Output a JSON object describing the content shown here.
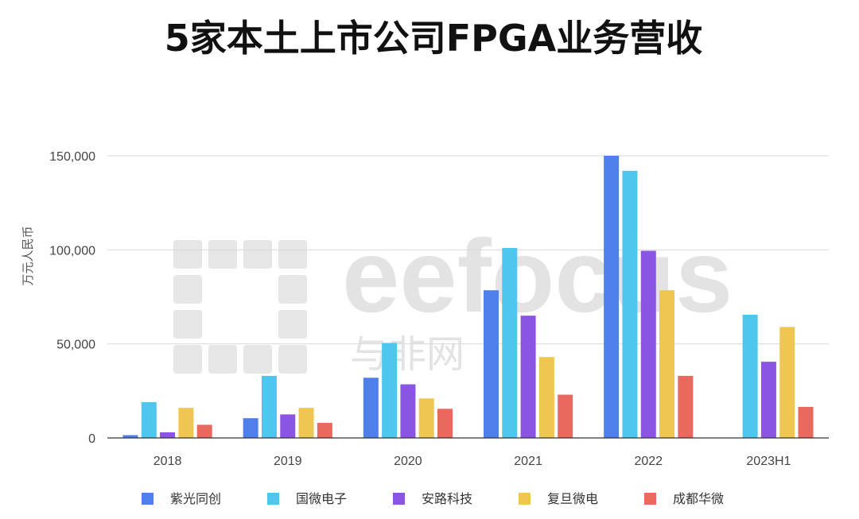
{
  "chart_data": {
    "type": "bar",
    "title": "5家本土上市公司FPGA业务营收",
    "ylabel": "万元人民币",
    "xlabel": "",
    "categories": [
      "2018",
      "2019",
      "2020",
      "2021",
      "2022",
      "2023H1"
    ],
    "ylim": [
      0,
      150000
    ],
    "yticks": [
      0,
      50000,
      100000,
      150000
    ],
    "ytick_labels": [
      "0",
      "50,000",
      "100,000",
      "150,000"
    ],
    "grid": true,
    "legend_position": "bottom",
    "series": [
      {
        "name": "紫光同创",
        "color": "#4f7fea",
        "values": [
          1500,
          10500,
          32000,
          78500,
          150000,
          null
        ]
      },
      {
        "name": "国微电子",
        "color": "#4fc6ed",
        "values": [
          19000,
          33000,
          50500,
          101000,
          142000,
          65500
        ]
      },
      {
        "name": "安路科技",
        "color": "#8a55e2",
        "values": [
          3000,
          12500,
          28500,
          65000,
          99500,
          40500
        ]
      },
      {
        "name": "复旦微电",
        "color": "#f0c652",
        "values": [
          16000,
          16000,
          21000,
          43000,
          78500,
          59000
        ]
      },
      {
        "name": "成都华微",
        "color": "#e9695f",
        "values": [
          7000,
          8000,
          15500,
          23000,
          33000,
          16500
        ]
      }
    ]
  },
  "watermark": {
    "logo_text": "eefocus",
    "logo_cn": "与非网"
  }
}
